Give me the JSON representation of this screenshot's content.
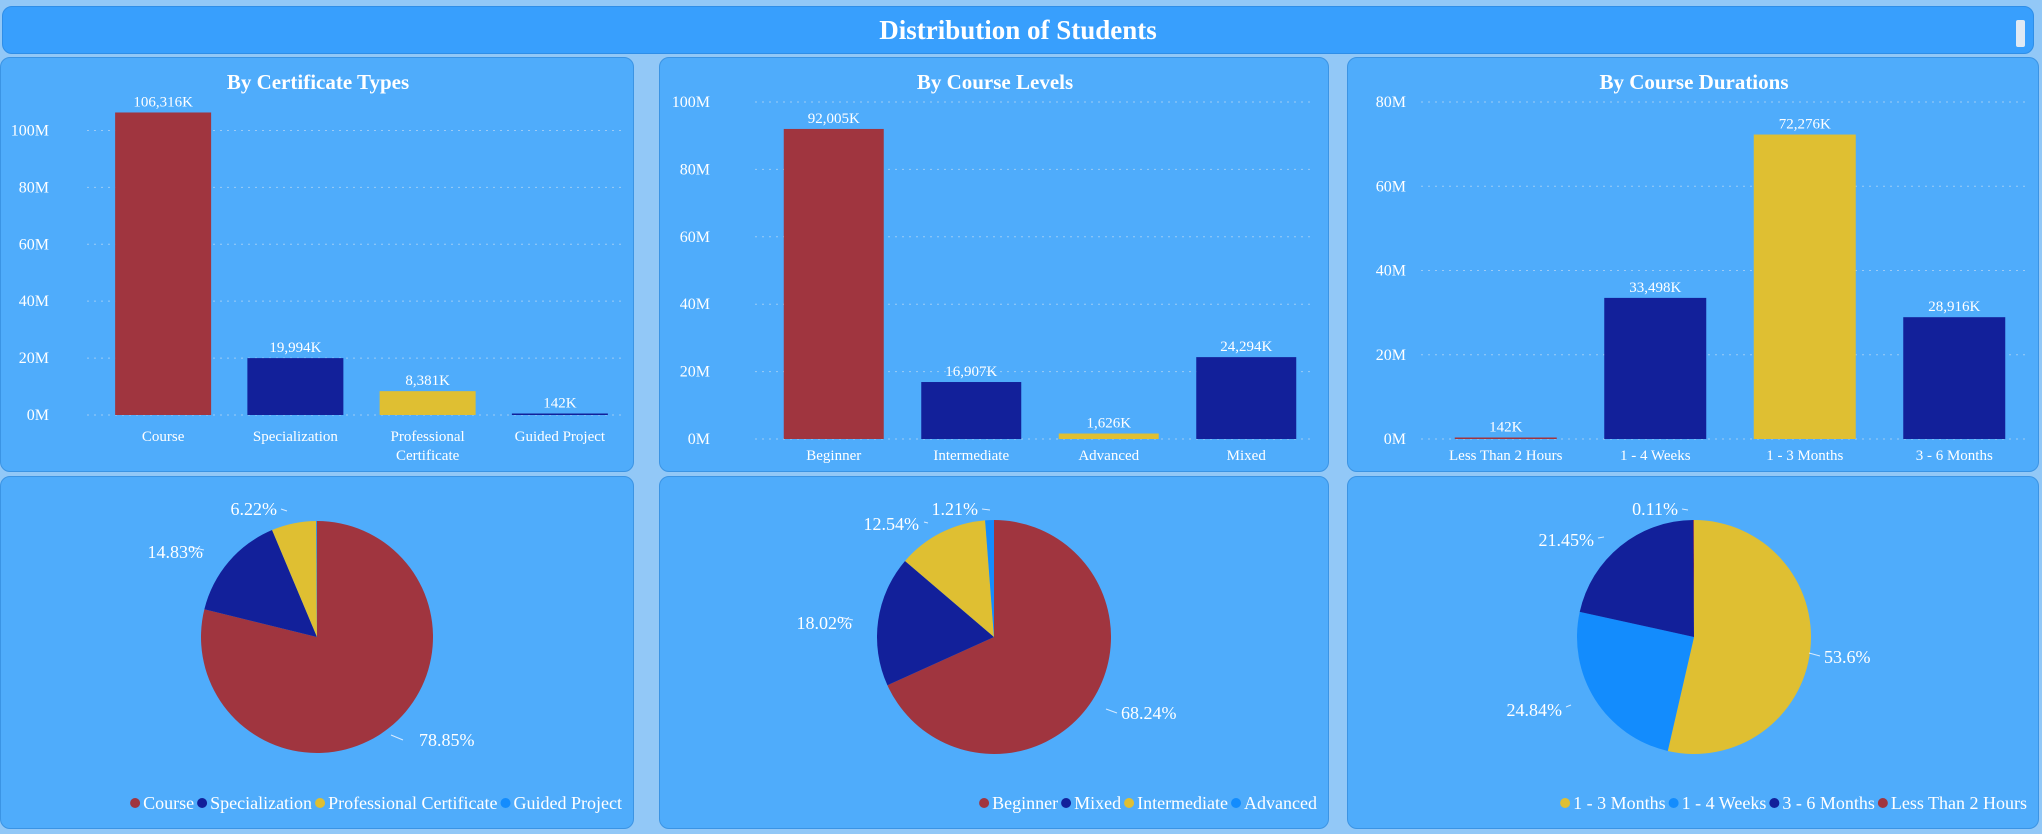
{
  "page_title": "Distribution of Students",
  "colors": {
    "red": "#a0353f",
    "navy": "#12209a",
    "yellow": "#dfbf32",
    "blue": "#138cfd",
    "panel": "#4facfb",
    "background": "#92c8f7"
  },
  "chart_data": [
    {
      "type": "bar",
      "title": "By Certificate Types",
      "categories": [
        "Course",
        "Specialization",
        "Professional Certificate",
        "Guided Project"
      ],
      "values": [
        106316,
        19994,
        8381,
        142
      ],
      "value_unit": "thousand students",
      "data_labels": [
        "106,316K",
        "19,994K",
        "8,381K",
        "142K"
      ],
      "colors": [
        "#a0353f",
        "#12209a",
        "#dfbf32",
        "#12209a"
      ],
      "ylim": [
        0,
        110000
      ],
      "yticks": [
        0,
        20000,
        40000,
        60000,
        80000,
        100000
      ],
      "ytick_labels": [
        "0M",
        "20M",
        "40M",
        "60M",
        "80M",
        "100M"
      ],
      "grid": true
    },
    {
      "type": "bar",
      "title": "By Course Levels",
      "categories": [
        "Beginner",
        "Intermediate",
        "Advanced",
        "Mixed"
      ],
      "values": [
        92005,
        16907,
        1626,
        24294
      ],
      "value_unit": "thousand students",
      "data_labels": [
        "92,005K",
        "16,907K",
        "1,626K",
        "24,294K"
      ],
      "colors": [
        "#a0353f",
        "#12209a",
        "#dfbf32",
        "#12209a"
      ],
      "ylim": [
        0,
        100000
      ],
      "yticks": [
        0,
        20000,
        40000,
        60000,
        80000,
        100000
      ],
      "ytick_labels": [
        "0M",
        "20M",
        "40M",
        "60M",
        "80M",
        "100M"
      ],
      "grid": true
    },
    {
      "type": "bar",
      "title": "By Course Durations",
      "categories": [
        "Less Than 2 Hours",
        "1 - 4 Weeks",
        "1 - 3 Months",
        "3 - 6 Months"
      ],
      "values": [
        142,
        33498,
        72276,
        28916
      ],
      "value_unit": "thousand students",
      "data_labels": [
        "142K",
        "33,498K",
        "72,276K",
        "28,916K"
      ],
      "colors": [
        "#a0353f",
        "#12209a",
        "#dfbf32",
        "#12209a"
      ],
      "ylim": [
        0,
        80000
      ],
      "yticks": [
        0,
        20000,
        40000,
        60000,
        80000
      ],
      "ytick_labels": [
        "0M",
        "20M",
        "40M",
        "60M",
        "80M"
      ],
      "grid": true
    },
    {
      "type": "pie",
      "categories": [
        "Course",
        "Specialization",
        "Professional Certificate",
        "Guided Project"
      ],
      "values": [
        78.85,
        14.83,
        6.22,
        0.11
      ],
      "labels": [
        "78.85%",
        "14.83%",
        "6.22%",
        ""
      ],
      "colors": [
        "#a0353f",
        "#12209a",
        "#dfbf32",
        "#138cfd"
      ],
      "legend": [
        "Course",
        "Specialization",
        "Professional Certificate",
        "Guided Project"
      ],
      "legend_position": "bottom-right"
    },
    {
      "type": "pie",
      "categories": [
        "Beginner",
        "Mixed",
        "Intermediate",
        "Advanced"
      ],
      "values": [
        68.24,
        18.02,
        12.54,
        1.21
      ],
      "labels": [
        "68.24%",
        "18.02%",
        "12.54%",
        "1.21%"
      ],
      "colors": [
        "#a0353f",
        "#12209a",
        "#dfbf32",
        "#138cfd"
      ],
      "legend": [
        "Beginner",
        "Mixed",
        "Intermediate",
        "Advanced"
      ],
      "legend_position": "bottom-right"
    },
    {
      "type": "pie",
      "categories": [
        "1 - 3 Months",
        "1 - 4 Weeks",
        "3 - 6 Months",
        "Less Than 2 Hours"
      ],
      "values": [
        53.6,
        24.84,
        21.45,
        0.11
      ],
      "labels": [
        "53.6%",
        "24.84%",
        "21.45%",
        "0.11%"
      ],
      "colors": [
        "#dfbf32",
        "#138cfd",
        "#12209a",
        "#a0353f"
      ],
      "legend": [
        "1 - 3 Months",
        "1 - 4 Weeks",
        "3 - 6 Months",
        "Less Than 2 Hours"
      ],
      "legend_position": "bottom-right"
    }
  ]
}
